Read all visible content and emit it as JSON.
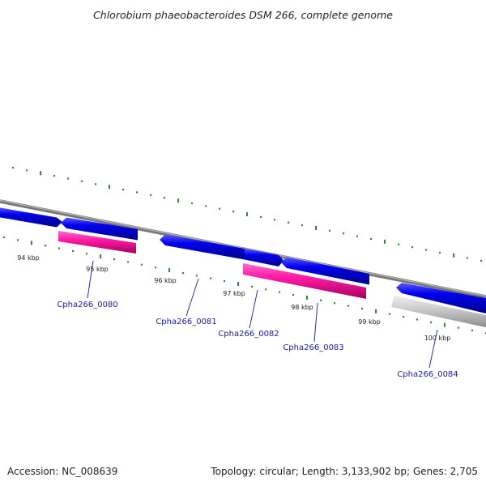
{
  "title": "Chlorobium phaeobacteroides DSM 266, complete genome",
  "footer": {
    "accession": "Accession: NC_008639",
    "summary": "Topology: circular; Length: 3,133,902 bp; Genes: 2,705"
  },
  "colors": {
    "backbone": "#8c8c8c",
    "forward_cds": "#0000ee",
    "highlight_cds": "#ff1aa6",
    "grey_cds": "#c8c8c8",
    "tick": "#2e8b2e",
    "label": "#1a1aa8"
  },
  "scale_labels": [
    "94 kbp",
    "95 kbp",
    "96 kbp",
    "97 kbp",
    "98 kbp",
    "99 kbp",
    "100 kbp"
  ],
  "genes": [
    {
      "id": "Cpha266_0080"
    },
    {
      "id": "Cpha266_0081"
    },
    {
      "id": "Cpha266_0082"
    },
    {
      "id": "Cpha266_0083"
    },
    {
      "id": "Cpha266_0084"
    }
  ]
}
